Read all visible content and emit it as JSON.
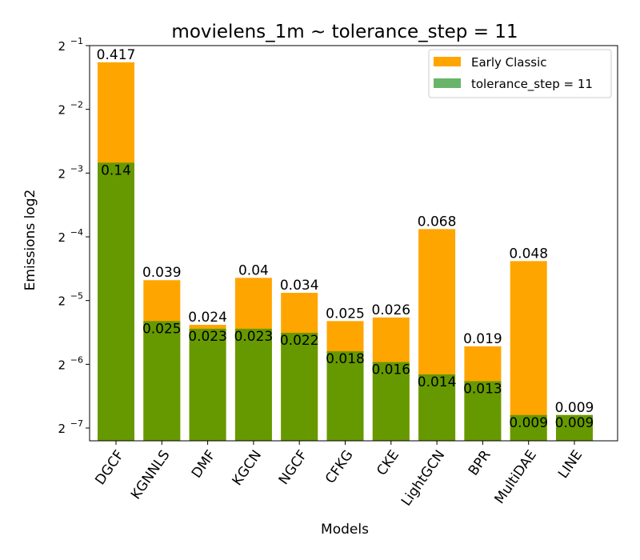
{
  "chart_data": {
    "type": "bar",
    "title": "movielens_1m ~ tolerance_step = 11",
    "xlabel": "Models",
    "ylabel": "Emissions log2",
    "yscale": "log2",
    "ylim": [
      0.0068,
      0.5
    ],
    "yticks": [
      {
        "value": 0.0078125,
        "base": "2",
        "exp": "−7"
      },
      {
        "value": 0.015625,
        "base": "2",
        "exp": "−6"
      },
      {
        "value": 0.03125,
        "base": "2",
        "exp": "−5"
      },
      {
        "value": 0.0625,
        "base": "2",
        "exp": "−4"
      },
      {
        "value": 0.125,
        "base": "2",
        "exp": "−3"
      },
      {
        "value": 0.25,
        "base": "2",
        "exp": "−2"
      },
      {
        "value": 0.5,
        "base": "2",
        "exp": "−1"
      }
    ],
    "legend_position": "top-right",
    "categories": [
      "DGCF",
      "KGNNLS",
      "DMF",
      "KGCN",
      "NGCF",
      "CFKG",
      "CKE",
      "LightGCN",
      "BPR",
      "MultiDAE",
      "LINE"
    ],
    "series": [
      {
        "name": "Early Classic",
        "color": "#ffa500",
        "values": [
          0.417,
          0.039,
          0.024,
          0.04,
          0.034,
          0.025,
          0.026,
          0.068,
          0.019,
          0.048,
          0.009
        ],
        "labels": [
          "0.417",
          "0.039",
          "0.024",
          "0.04",
          "0.034",
          "0.025",
          "0.026",
          "0.068",
          "0.019",
          "0.048",
          "0.009"
        ]
      },
      {
        "name": "tolerance_step = 11",
        "color": "#669900",
        "legend_color": "#6ab46a",
        "values": [
          0.14,
          0.025,
          0.023,
          0.023,
          0.022,
          0.018,
          0.016,
          0.014,
          0.013,
          0.009,
          0.009
        ],
        "labels": [
          "0.14",
          "0.025",
          "0.023",
          "0.023",
          "0.022",
          "0.018",
          "0.016",
          "0.014",
          "0.013",
          "0.009",
          "0.009"
        ]
      }
    ]
  }
}
